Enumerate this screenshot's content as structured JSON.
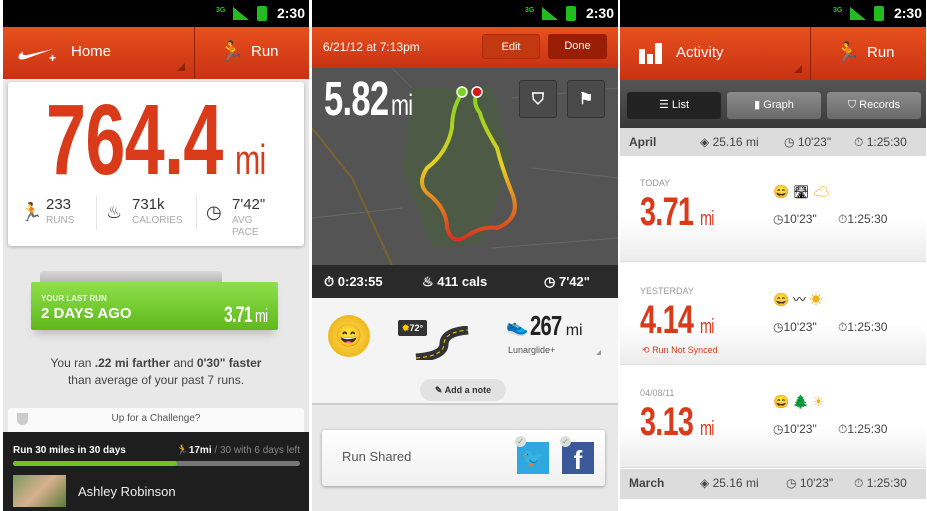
{
  "status_bar": {
    "network": "3G",
    "time": "2:30"
  },
  "colors": {
    "brand": "#d83a1a",
    "green": "#6cc324",
    "dark": "#2a2a2a"
  },
  "home": {
    "header": {
      "logo": "nike-plus-logo",
      "title": "Home",
      "run_label": "Run"
    },
    "total_distance": "764.4",
    "total_unit": "mi",
    "stats": [
      {
        "value": "233",
        "label": "RUNS",
        "icon": "runner-icon"
      },
      {
        "value": "731k",
        "label": "CALORIES",
        "icon": "flame-icon"
      },
      {
        "value": "7'42\"",
        "label": "AVG PACE",
        "icon": "speedometer-icon"
      }
    ],
    "last_run": {
      "caption": "YOUR LAST RUN",
      "when": "2 DAYS AGO",
      "distance": "3.71",
      "unit": "mi"
    },
    "comparison": {
      "p1": "You ran ",
      "b1": ".22 mi farther",
      "p2": " and ",
      "b2": "0'30\" faster",
      "p3": "than average of your past 7 runs."
    },
    "challenge_prompt": "Up for a Challenge?",
    "challenge": {
      "title": "Run 30 miles in 30 days",
      "progress_value": "17mi",
      "progress_rest": " / 30 with 6 days left",
      "progress_fraction": 0.57,
      "user": "Ashley Robinson"
    }
  },
  "run_detail": {
    "header": {
      "date": "6/21/12 at 7:13pm",
      "edit": "Edit",
      "done": "Done"
    },
    "distance": "5.82",
    "unit": "mi",
    "stats": {
      "time": "0:23:55",
      "calories": "411 cals",
      "pace": "7'42\""
    },
    "weather": "72°",
    "shoe": {
      "distance": "267",
      "unit": "mi",
      "name": "Lunarglide+"
    },
    "add_note": "Add a note",
    "shared_label": "Run Shared"
  },
  "activity": {
    "header": {
      "title": "Activity",
      "run_label": "Run"
    },
    "tabs": [
      {
        "label": "List",
        "active": true
      },
      {
        "label": "Graph",
        "active": false
      },
      {
        "label": "Records",
        "active": false
      }
    ],
    "months": [
      {
        "name": "April",
        "distance": "25.16 mi",
        "pace": "10'23\"",
        "duration": "1:25:30"
      },
      {
        "name": "March",
        "distance": "25.16 mi",
        "pace": "10'23\"",
        "duration": "1:25:30"
      }
    ],
    "runs": [
      {
        "date": "TODAY",
        "distance": "3.71",
        "unit": "mi",
        "pace": "10'23\"",
        "duration": "1:25:30",
        "terrain": "road",
        "weather": "cloudy",
        "note": ""
      },
      {
        "date": "YESTERDAY",
        "distance": "4.14",
        "unit": "mi",
        "pace": "10'23\"",
        "duration": "1:25:30",
        "terrain": "track",
        "weather": "sunny",
        "note": "Run Not Synced"
      },
      {
        "date": "04/08/11",
        "distance": "3.13",
        "unit": "mi",
        "pace": "10'23\"",
        "duration": "1:25:30",
        "terrain": "trail",
        "weather": "sunny",
        "note": ""
      }
    ]
  }
}
